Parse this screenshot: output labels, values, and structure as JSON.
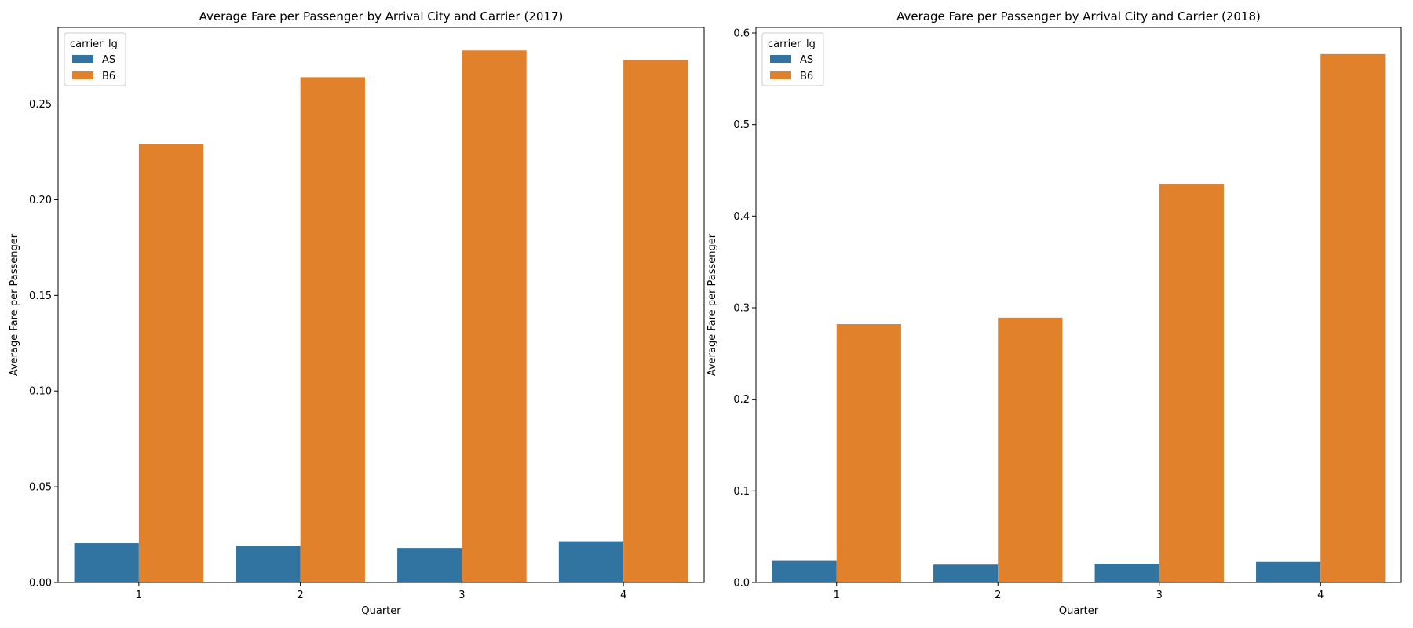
{
  "chart_data": [
    {
      "type": "bar",
      "title": "Average Fare per Passenger by Arrival City and Carrier (2017)",
      "xlabel": "Quarter",
      "ylabel": "Average Fare per Passenger",
      "categories": [
        "1",
        "2",
        "3",
        "4"
      ],
      "ylim": [
        0,
        0.29
      ],
      "yticks": [
        "0.00",
        "0.05",
        "0.10",
        "0.15",
        "0.20",
        "0.25"
      ],
      "legend": {
        "title": "carrier_lg",
        "position": "top-left"
      },
      "grid": false,
      "series": [
        {
          "name": "AS",
          "color": "#3274a1",
          "values": [
            0.0205,
            0.019,
            0.018,
            0.0215
          ]
        },
        {
          "name": "B6",
          "color": "#e1812c",
          "values": [
            0.229,
            0.264,
            0.278,
            0.273
          ]
        }
      ]
    },
    {
      "type": "bar",
      "title": "Average Fare per Passenger by Arrival City and Carrier (2018)",
      "xlabel": "Quarter",
      "ylabel": "Average Fare per Passenger",
      "categories": [
        "1",
        "2",
        "3",
        "4"
      ],
      "ylim": [
        0,
        0.606
      ],
      "yticks": [
        "0.0",
        "0.1",
        "0.2",
        "0.3",
        "0.4",
        "0.5",
        "0.6"
      ],
      "legend": {
        "title": "carrier_lg",
        "position": "top-left"
      },
      "grid": false,
      "series": [
        {
          "name": "AS",
          "color": "#3274a1",
          "values": [
            0.0235,
            0.0195,
            0.0205,
            0.0225
          ]
        },
        {
          "name": "B6",
          "color": "#e1812c",
          "values": [
            0.282,
            0.289,
            0.435,
            0.577
          ]
        }
      ]
    }
  ]
}
